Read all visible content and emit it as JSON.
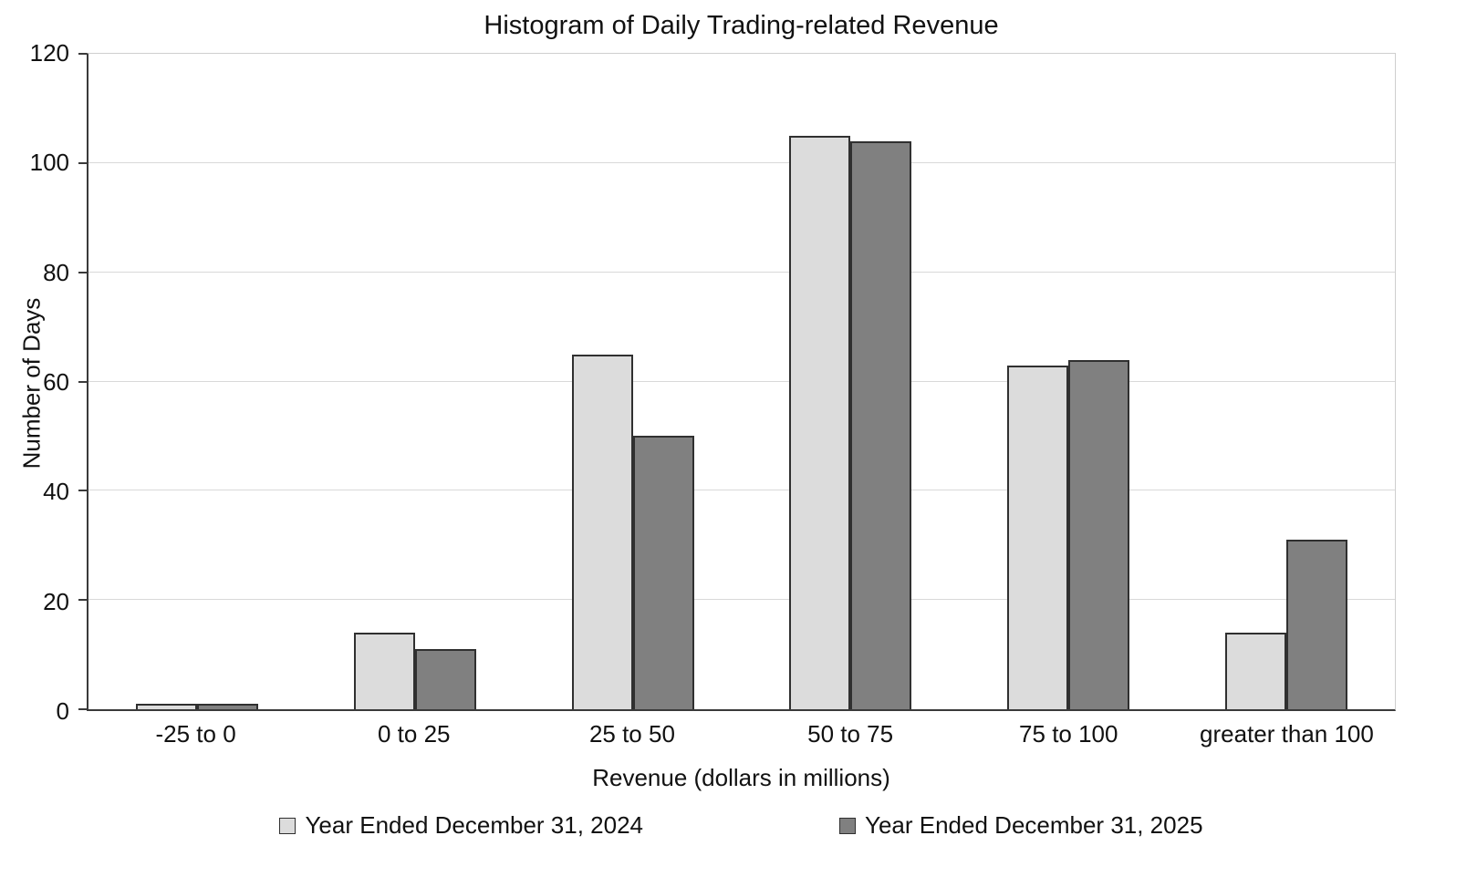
{
  "chart_data": {
    "type": "bar",
    "title": "Histogram of Daily Trading-related Revenue",
    "xlabel": "Revenue (dollars in millions)",
    "ylabel": "Number of Days",
    "categories": [
      "-25 to 0",
      "0 to 25",
      "25 to 50",
      "50 to 75",
      "75 to 100",
      "greater than 100"
    ],
    "series": [
      {
        "name": "Year Ended December 31, 2024",
        "color": "#dcdcdc",
        "border_color": "#303030",
        "values": [
          1,
          14,
          65,
          105,
          63,
          14
        ]
      },
      {
        "name": "Year Ended December 31, 2025",
        "color": "#808080",
        "border_color": "#303030",
        "values": [
          1,
          11,
          50,
          104,
          64,
          31
        ]
      }
    ],
    "ylim": [
      0,
      120
    ],
    "ytick_step": 20,
    "grid": "horizontal",
    "legend_position": "bottom",
    "background_color": "#ffffff",
    "gridline_color": "#d9d9d9"
  }
}
